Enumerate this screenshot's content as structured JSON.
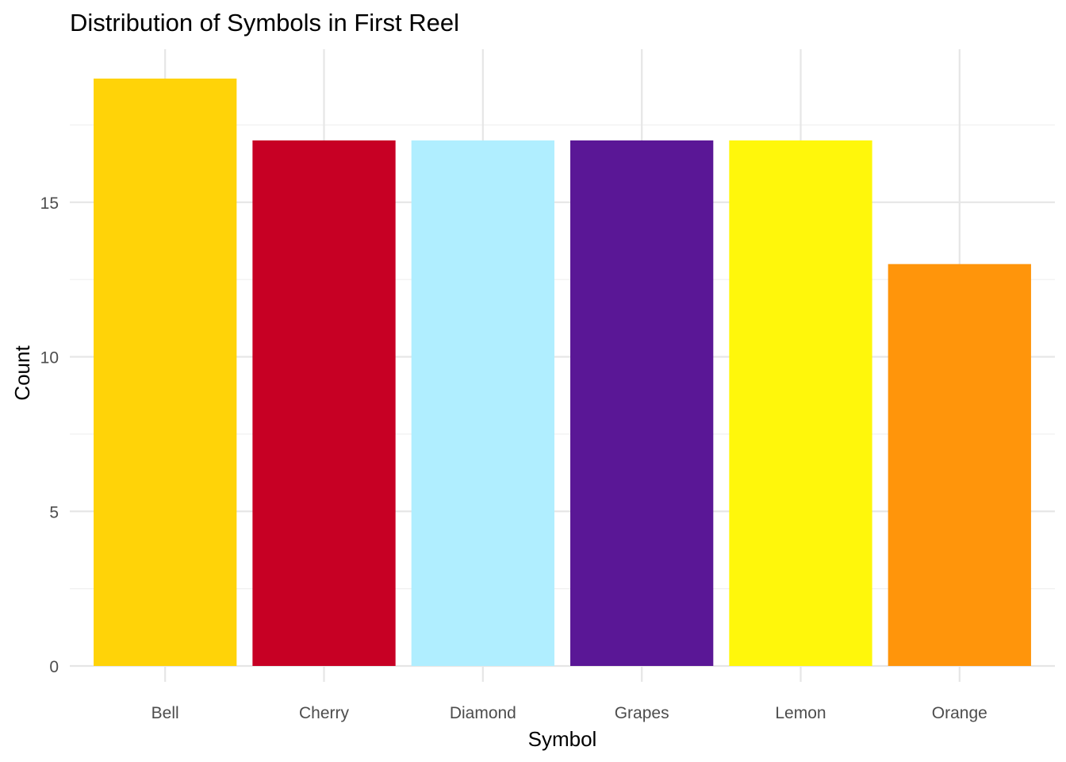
{
  "chart_data": {
    "type": "bar",
    "title": "Distribution of Symbols in First Reel",
    "xlabel": "Symbol",
    "ylabel": "Count",
    "categories": [
      "Bell",
      "Cherry",
      "Diamond",
      "Grapes",
      "Lemon",
      "Orange"
    ],
    "values": [
      19,
      17,
      17,
      17,
      17,
      13
    ],
    "colors": [
      "#FFD308",
      "#C70024",
      "#B0EEFF",
      "#5A1796",
      "#FFF70B",
      "#FF950B"
    ],
    "ylim": [
      0,
      19.95
    ],
    "yticks": [
      0,
      5,
      10,
      15
    ],
    "yticks_minor": [
      2.5,
      7.5,
      12.5,
      17.5
    ],
    "grid": true,
    "legend": "none",
    "theme": "minimal"
  }
}
